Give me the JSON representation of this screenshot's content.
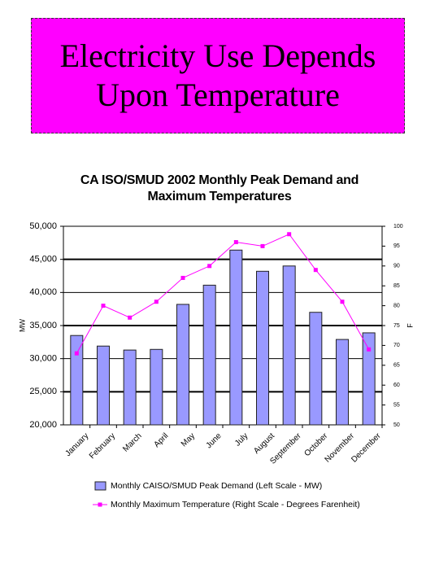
{
  "header": {
    "title": "Electricity Use Depends Upon Temperature"
  },
  "chart_data": {
    "type": "bar",
    "title": "CA ISO/SMUD 2002 Monthly Peak Demand and Maximum Temperatures",
    "y_label": "MW",
    "y2_label": "F",
    "categories": [
      "January",
      "February",
      "March",
      "April",
      "May",
      "June",
      "July",
      "August",
      "September",
      "October",
      "November",
      "December"
    ],
    "series": [
      {
        "name": "Monthly CAISO/SMUD Peak Demand (Left Scale - MW)",
        "color": "#9999ff",
        "values": [
          33500,
          31900,
          31300,
          31400,
          38200,
          41100,
          46400,
          43200,
          44000,
          37000,
          32900,
          33900
        ]
      },
      {
        "name": "Monthly Maximum Temperature (Right Scale - Degrees Farenheit)",
        "color": "#ff00ff",
        "axis": "y2",
        "values": [
          68,
          80,
          77,
          81,
          87,
          90,
          96,
          95,
          98,
          89,
          81,
          69
        ]
      }
    ],
    "ylim": [
      20000,
      50000
    ],
    "yticks": [
      {
        "value": 20000,
        "label": "20,000"
      },
      {
        "value": 25000,
        "label": "25,000"
      },
      {
        "value": 30000,
        "label": "30,000"
      },
      {
        "value": 35000,
        "label": "35,000"
      },
      {
        "value": 40000,
        "label": "40,000"
      },
      {
        "value": 45000,
        "label": "45,000"
      },
      {
        "value": 50000,
        "label": "50,000"
      }
    ],
    "y2lim": [
      50,
      100
    ],
    "y2ticks": [
      50,
      55,
      60,
      65,
      70,
      75,
      80,
      85,
      90,
      95,
      100
    ],
    "grid": true
  }
}
